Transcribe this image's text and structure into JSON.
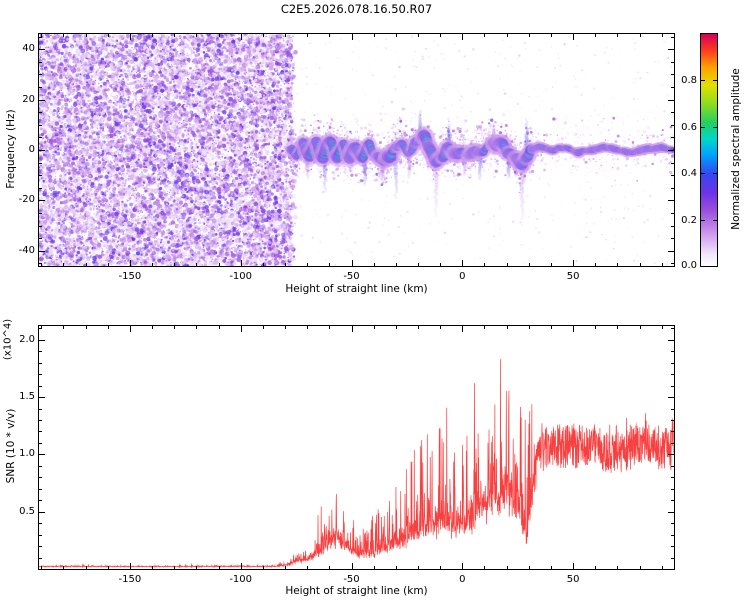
{
  "title": "C2E5.2026.078.16.50.R07",
  "colors": {
    "background": "#ffffff",
    "axis": "#000000",
    "snr_line": "#f84040",
    "colormap_stops": [
      [
        0.0,
        "#ffffff"
      ],
      [
        0.05,
        "#f3e8fb"
      ],
      [
        0.14,
        "#cf9aec"
      ],
      [
        0.24,
        "#9b4fdc"
      ],
      [
        0.32,
        "#6b33e8"
      ],
      [
        0.4,
        "#3348f0"
      ],
      [
        0.48,
        "#00a2ff"
      ],
      [
        0.55,
        "#00d8c8"
      ],
      [
        0.62,
        "#22d060"
      ],
      [
        0.7,
        "#8fdc20"
      ],
      [
        0.78,
        "#e0e000"
      ],
      [
        0.86,
        "#ffa000"
      ],
      [
        0.93,
        "#ff3c1e"
      ],
      [
        1.0,
        "#d8005a"
      ]
    ]
  },
  "chart_data": [
    {
      "type": "heatmap",
      "title": "C2E5.2026.078.16.50.R07",
      "xlabel": "Height of straight line (km)",
      "ylabel": "Frequency (Hz)",
      "xlim": [
        -191,
        95.5
      ],
      "ylim": [
        -46,
        46
      ],
      "xticks": {
        "values": [
          -150,
          -100,
          -50,
          0,
          50
        ],
        "labels": [
          "-150",
          "-100",
          "-50",
          "0",
          "50"
        ]
      },
      "yticks": {
        "values": [
          -40,
          -20,
          0,
          20,
          40
        ],
        "labels": [
          "-40",
          "-20",
          "0",
          "20",
          "40"
        ]
      },
      "grid": false,
      "colorbar": {
        "label": "Normalized spectral amplitude",
        "lim": [
          0,
          1
        ],
        "ticks": {
          "values": [
            0,
            0.2,
            0.4,
            0.6,
            0.8
          ],
          "labels": [
            "0.0",
            "0.2",
            "0.4",
            "0.6",
            "0.8"
          ]
        }
      },
      "noise_boundary_km": -77,
      "signal_track": [
        [
          -78,
          1
        ],
        [
          -75,
          -2
        ],
        [
          -72,
          3
        ],
        [
          -69,
          -3
        ],
        [
          -66,
          4
        ],
        [
          -63,
          -2
        ],
        [
          -60,
          4
        ],
        [
          -57,
          -3
        ],
        [
          -54,
          2
        ],
        [
          -51,
          -4
        ],
        [
          -48,
          1
        ],
        [
          -45,
          -3
        ],
        [
          -42,
          2
        ],
        [
          -39,
          -3
        ],
        [
          -36,
          -5
        ],
        [
          -33,
          -2
        ],
        [
          -30,
          1
        ],
        [
          -27,
          3
        ],
        [
          -24,
          -1
        ],
        [
          -21,
          2
        ],
        [
          -18,
          4
        ],
        [
          -15,
          1
        ],
        [
          -12,
          -4
        ],
        [
          -9,
          -1
        ],
        [
          -6,
          1
        ],
        [
          -3,
          -2
        ],
        [
          0,
          -1
        ],
        [
          3,
          -3
        ],
        [
          6,
          -1
        ],
        [
          9,
          1
        ],
        [
          12,
          3
        ],
        [
          15,
          2
        ],
        [
          18,
          3
        ],
        [
          21,
          -1
        ],
        [
          24,
          -4
        ],
        [
          27,
          -6
        ],
        [
          29,
          -2
        ],
        [
          31,
          0
        ],
        [
          34,
          1
        ],
        [
          40,
          0
        ],
        [
          46,
          1
        ],
        [
          52,
          -1
        ],
        [
          58,
          0
        ],
        [
          64,
          1
        ],
        [
          70,
          0
        ],
        [
          76,
          -1
        ],
        [
          82,
          0
        ],
        [
          88,
          1
        ],
        [
          95,
          0
        ]
      ],
      "streaks": [
        [
          -70,
          -10
        ],
        [
          -62,
          -16
        ],
        [
          -52,
          10
        ],
        [
          -44,
          -12
        ],
        [
          -36,
          -9
        ],
        [
          -30,
          -20
        ],
        [
          -24,
          -10
        ],
        [
          -19,
          12
        ],
        [
          -12,
          -22
        ],
        [
          -6,
          9
        ],
        [
          1,
          -8
        ],
        [
          8,
          -12
        ],
        [
          14,
          8
        ],
        [
          21,
          -10
        ],
        [
          27,
          -24
        ],
        [
          29,
          14
        ]
      ]
    },
    {
      "type": "line",
      "xlabel": "Height of straight line (km)",
      "ylabel": "SNR (10 * v/v)",
      "scale_label": "(x10^4)",
      "xlim": [
        -191,
        95.5
      ],
      "ylim": [
        0,
        2.12
      ],
      "xticks": {
        "values": [
          -150,
          -100,
          -50,
          0,
          50
        ],
        "labels": [
          "-150",
          "-100",
          "-50",
          "0",
          "50"
        ]
      },
      "yticks": {
        "values": [
          0.5,
          1.0,
          1.5,
          2.0
        ],
        "labels": [
          "0.5",
          "1.0",
          "1.5",
          "2.0"
        ]
      },
      "grid": false,
      "envelope": [
        [
          -191,
          0.02,
          0.01
        ],
        [
          -120,
          0.02,
          0.01
        ],
        [
          -85,
          0.02,
          0.015
        ],
        [
          -79,
          0.03,
          0.03
        ],
        [
          -75,
          0.06,
          0.08
        ],
        [
          -70,
          0.07,
          0.12
        ],
        [
          -65,
          0.1,
          0.35
        ],
        [
          -60,
          0.18,
          0.45
        ],
        [
          -56,
          0.22,
          0.5
        ],
        [
          -52,
          0.15,
          0.35
        ],
        [
          -47,
          0.1,
          0.25
        ],
        [
          -43,
          0.1,
          0.3
        ],
        [
          -38,
          0.12,
          0.4
        ],
        [
          -33,
          0.15,
          0.5
        ],
        [
          -28,
          0.18,
          0.55
        ],
        [
          -24,
          0.22,
          0.7
        ],
        [
          -20,
          0.25,
          0.85
        ],
        [
          -16,
          0.28,
          0.9
        ],
        [
          -12,
          0.3,
          1.0
        ],
        [
          -8,
          0.32,
          1.15
        ],
        [
          -4,
          0.28,
          0.7
        ],
        [
          0,
          0.3,
          0.75
        ],
        [
          4,
          0.32,
          0.9
        ],
        [
          8,
          0.38,
          1.1
        ],
        [
          12,
          0.45,
          1.35
        ],
        [
          16,
          0.45,
          1.3
        ],
        [
          20,
          0.5,
          1.5
        ],
        [
          24,
          0.45,
          1.5
        ],
        [
          27,
          0.35,
          1.2
        ],
        [
          29,
          0.2,
          0.8
        ],
        [
          31,
          0.45,
          0.9
        ],
        [
          33,
          0.8,
          0.5
        ],
        [
          35,
          1.0,
          0.2
        ],
        [
          40,
          1.05,
          0.15
        ],
        [
          50,
          1.05,
          0.12
        ],
        [
          60,
          1.02,
          0.12
        ],
        [
          70,
          1.0,
          0.15
        ],
        [
          80,
          1.05,
          0.12
        ],
        [
          95,
          1.03,
          0.15
        ]
      ]
    }
  ]
}
